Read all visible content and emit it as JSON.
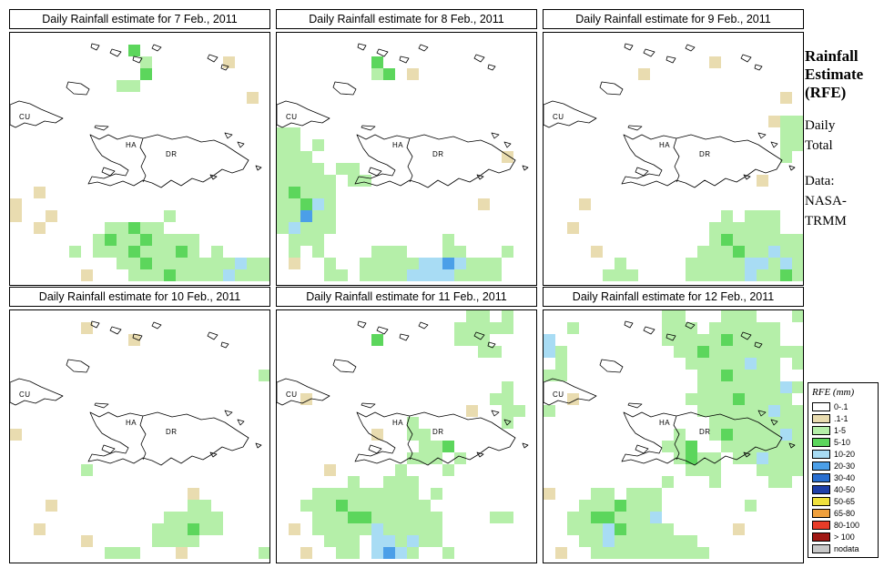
{
  "panels": [
    {
      "title": "Daily Rainfall estimate for  7 Feb., 2011",
      "grid": [
        "......................",
        "..........G...........",
        "...........g......t...",
        "...........G..........",
        ".........gg...........",
        "....................t.",
        "......................",
        "......................",
        "......................",
        "......................",
        "......................",
        "......................",
        "......................",
        "..t...................",
        "t.....................",
        "t..t.........g........",
        "..t.....ggGgg.........",
        ".......gGggGgggg......",
        ".....g.gggGgggGg.g....",
        ".........ggGgggggggbgg",
        "......t...gggGggggbggg"
      ]
    },
    {
      "title": "Daily Rainfall estimate for  8 Feb., 2011",
      "grid": [
        "......................",
        "......................",
        "........G.............",
        "........gG.t..........",
        "......................",
        "......................",
        "......................",
        "......................",
        "gg....................",
        "gg.g..................",
        "ggg................t..",
        "gggg.gg...............",
        "ggggg.gg..............",
        "gGggg.................",
        "ggGbg............t....",
        "ggBgg.................",
        "gbggg.................",
        ".ggg..........g.......",
        ".g.g....ggg...gg...g..",
        ".t..g..gggggbbBbggg...",
        "....gg.ggggbbbbgggg..."
      ]
    },
    {
      "title": "Daily Rainfall estimate for  9 Feb., 2011",
      "grid": [
        "......................",
        "......................",
        "..............t.......",
        "........t.............",
        "......................",
        "....................t.",
        "......................",
        "...................tgg",
        "....................gg",
        "....................gg",
        "....................g.",
        "......................",
        "..................t...",
        "......................",
        "...t..................",
        "...............g.ggg..",
        "..t...........gggggg..",
        "..............gGgggggg",
        "....t........gggGggbgg",
        "......g.....gggggbbgbg",
        ".....ggg....gggggbggGg"
      ]
    },
    {
      "title": "Daily Rainfall estimate for  10 Feb., 2011",
      "grid": [
        "......................",
        "......t...............",
        "..........t...........",
        "......................",
        "......................",
        ".....................g",
        "......................",
        "......................",
        "......................",
        "......................",
        "t.....................",
        "......................",
        "......................",
        "......g...............",
        "......................",
        "...............t......",
        "...t...........gg.....",
        ".............ggggg....",
        "..t.........gggGgg....",
        "......t.....gggg......",
        "........ggg...t......g"
      ]
    },
    {
      "title": "Daily Rainfall estimate for  11 Feb., 2011",
      "grid": [
        "................gg.g..",
        "...............ggggg..",
        "........G......ggg....",
        ".................gg...",
        "......................",
        "......................",
        "...................g..",
        "..t...............gg..",
        "................t..gg.",
        "...........g.......g..",
        "........t..gg.........",
        "............ggG.......",
        "...........ggg.g......",
        "....t.....g...g.......",
        "......g..ggg..........",
        "...ggggggggg.g........",
        "..gggGggggggg.........",
        "...gggGGgggggg....gg..",
        ".t.gggggbggggg........",
        "....ggg.bbgbgg........",
        "..t..gg.bBbg..g......."
      ]
    },
    {
      "title": "Daily Rainfall estimate for  12 Feb., 2011",
      "grid": [
        "..........gg...ggg...g",
        "..g.......ggg.gggggg..",
        "b.........gggggGgggg..",
        "bg.........ggGgggggggg",
        ".g..........gggggbgg.g",
        "gg...........ggGgggg..",
        ".............gggggggbg",
        "..t.........ggggGgggg.",
        "g............ggggggbgg",
        "..............gggggggg",
        "...........g..gGggggbg",
        "..........ggG..ggggggg",
        "...........gGgg.ggbggg",
        "............ggg...gggg",
        "..........g...g....gg.",
        "t...gg.ggg............",
        "...gggGggg.......g....",
        "..ggGGgggb............",
        "..gggbGgggg.....t.....",
        "...ggbggggggg.........",
        ".t..gggggggggg........"
      ]
    }
  ],
  "map_labels": {
    "cu": "CU",
    "ha": "HA",
    "dr": "DR"
  },
  "sidebar": {
    "title_lines": [
      "Rainfall",
      "Estimate",
      "(RFE)"
    ],
    "subtitle_lines": [
      "Daily",
      "Total"
    ],
    "data_lines": [
      "Data:",
      "NASA-",
      "TRMM"
    ]
  },
  "legend": {
    "title": "RFE (mm)",
    "entries": [
      {
        "label": "0-.1",
        "color": "#ffffff"
      },
      {
        "label": ".1-1",
        "color": "#e9dcb0"
      },
      {
        "label": "1-5",
        "color": "#b5efa9"
      },
      {
        "label": "5-10",
        "color": "#5cd65c"
      },
      {
        "label": "10-20",
        "color": "#a8dcf4"
      },
      {
        "label": "20-30",
        "color": "#4b9fe8"
      },
      {
        "label": "30-40",
        "color": "#2a6fd0"
      },
      {
        "label": "40-50",
        "color": "#1f3fa8"
      },
      {
        "label": "50-65",
        "color": "#f0e13c"
      },
      {
        "label": "65-80",
        "color": "#f0a03c"
      },
      {
        "label": "80-100",
        "color": "#e83c28"
      },
      {
        "label": "> 100",
        "color": "#a01814"
      },
      {
        "label": "nodata",
        "color": "#c9c9c9"
      }
    ]
  },
  "cell_colors": {
    "t": "#e9dcb0",
    "g": "#b5efa9",
    "G": "#5cd65c",
    "b": "#a8dcf4",
    "B": "#4b9fe8"
  }
}
